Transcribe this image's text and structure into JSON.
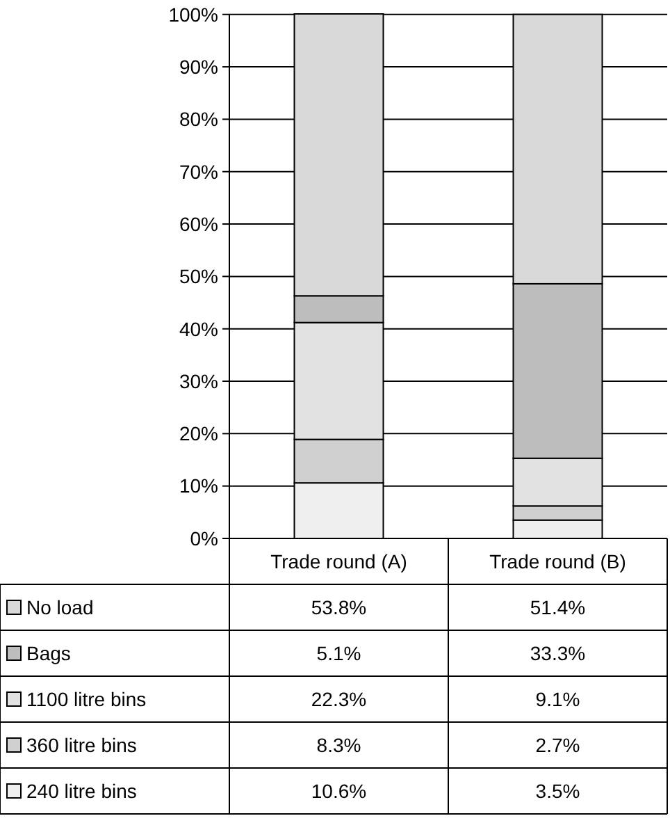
{
  "chart_data": {
    "type": "bar",
    "stacked": true,
    "categories": [
      "Trade round (A)",
      "Trade round (B)"
    ],
    "series": [
      {
        "name": "240 litre bins",
        "color": "#efefef",
        "values": [
          10.6,
          3.5
        ],
        "value_labels": [
          "10.6%",
          "3.5%"
        ]
      },
      {
        "name": "360 litre bins",
        "color": "#d0d0d0",
        "values": [
          8.3,
          2.7
        ],
        "value_labels": [
          "8.3%",
          "2.7%"
        ]
      },
      {
        "name": "1100 litre bins",
        "color": "#e2e2e2",
        "values": [
          22.3,
          9.1
        ],
        "value_labels": [
          "22.3%",
          "9.1%"
        ]
      },
      {
        "name": "Bags",
        "color": "#bdbdbd",
        "values": [
          5.1,
          33.3
        ],
        "value_labels": [
          "5.1%",
          "33.3%"
        ]
      },
      {
        "name": "No load",
        "color": "#d9d9d9",
        "values": [
          53.8,
          51.4
        ],
        "value_labels": [
          "53.8%",
          "51.4%"
        ]
      }
    ],
    "ylim": [
      0,
      100.1
    ],
    "yticks": [
      {
        "value": 0,
        "label": "0%"
      },
      {
        "value": 10,
        "label": "10%"
      },
      {
        "value": 20,
        "label": "20%"
      },
      {
        "value": 30,
        "label": "30%"
      },
      {
        "value": 40,
        "label": "40%"
      },
      {
        "value": 50,
        "label": "50%"
      },
      {
        "value": 60,
        "label": "60%"
      },
      {
        "value": 70,
        "label": "70%"
      },
      {
        "value": 80,
        "label": "80%"
      },
      {
        "value": 90,
        "label": "90%"
      },
      {
        "value": 100,
        "label": "100%"
      }
    ],
    "grid": "y",
    "legend": "bottom"
  }
}
